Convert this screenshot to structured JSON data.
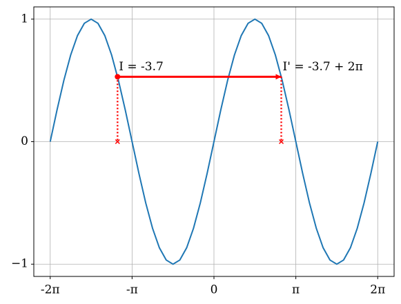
{
  "chart_data": {
    "type": "line",
    "x": [
      -6.2832,
      -6.0214,
      -5.7596,
      -5.4978,
      -5.236,
      -4.9742,
      -4.7124,
      -4.4506,
      -4.1888,
      -3.927,
      -3.6652,
      -3.4034,
      -3.1416,
      -2.8798,
      -2.618,
      -2.3562,
      -2.0944,
      -1.8326,
      -1.5708,
      -1.309,
      -1.0472,
      -0.7854,
      -0.5236,
      -0.2618,
      0,
      0.2618,
      0.5236,
      0.7854,
      1.0472,
      1.309,
      1.5708,
      1.8326,
      2.0944,
      2.3562,
      2.618,
      2.8798,
      3.1416,
      3.4034,
      3.6652,
      3.927,
      4.1888,
      4.4506,
      4.7124,
      4.9742,
      5.236,
      5.4978,
      5.7596,
      6.0214,
      6.2832
    ],
    "series": [
      {
        "color": "#1f77b4",
        "values": [
          0,
          0.2588,
          0.5,
          0.7071,
          0.866,
          0.9659,
          1,
          0.9659,
          0.866,
          0.7071,
          0.5,
          0.2588,
          0,
          -0.2588,
          -0.5,
          -0.7071,
          -0.866,
          -0.9659,
          -1,
          -0.9659,
          -0.866,
          -0.7071,
          -0.5,
          -0.2588,
          0,
          0.2588,
          0.5,
          0.7071,
          0.866,
          0.9659,
          1,
          0.9659,
          0.866,
          0.7071,
          0.5,
          0.2588,
          0,
          -0.2588,
          -0.5,
          -0.7071,
          -0.866,
          -0.9659,
          -1,
          -0.9659,
          -0.866,
          -0.7071,
          -0.5,
          -0.2588,
          0
        ]
      }
    ],
    "xlim": [
      -6.912,
      6.912
    ],
    "ylim": [
      -1.1,
      1.1
    ],
    "xticks": [
      {
        "value": -6.2832,
        "label": "-2π"
      },
      {
        "value": -3.1416,
        "label": "-π"
      },
      0,
      {
        "value": 3.1416,
        "label": "π"
      },
      {
        "value": 6.2832,
        "label": "2π"
      }
    ],
    "yticks": [
      {
        "value": -1,
        "label": "−1"
      },
      0,
      1
    ],
    "grid": true,
    "annotation_color": "#ff0000",
    "annotations": [
      {
        "text": "I = -3.7",
        "x": -3.7,
        "y": 0.5298
      },
      {
        "text": "I' = -3.7 + 2π",
        "x": 2.5832,
        "y": 0.5298
      }
    ]
  }
}
